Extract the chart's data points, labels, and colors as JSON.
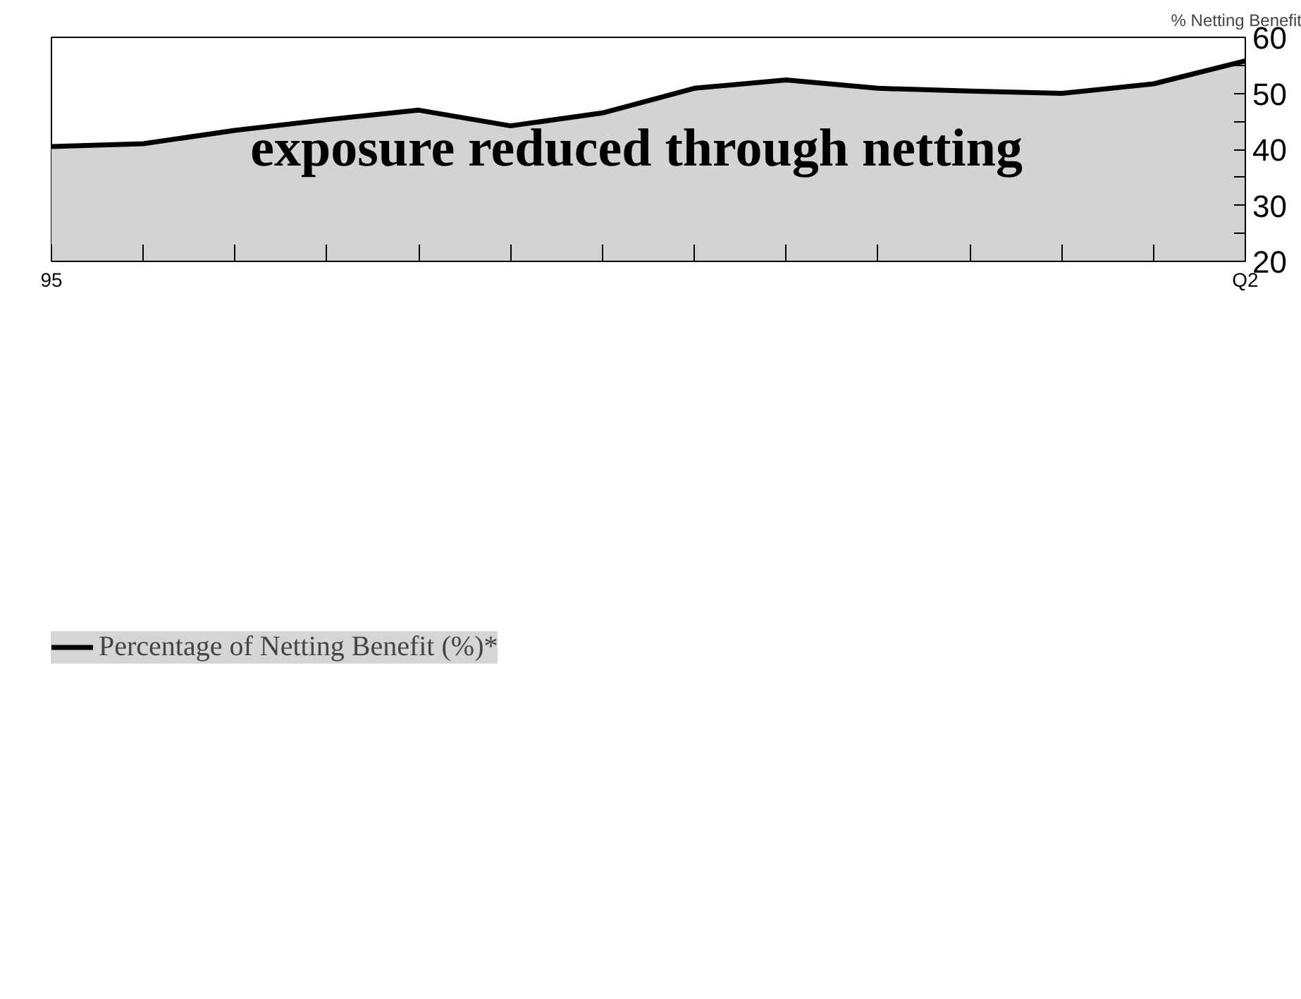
{
  "chart_data": {
    "type": "area",
    "ylabel": "% Netting Benefit",
    "categories": [
      "95",
      null,
      null,
      null,
      null,
      null,
      null,
      null,
      null,
      null,
      null,
      null,
      null,
      "Q2"
    ],
    "series": [
      {
        "name": "Percentage of Netting Benefit (%)*",
        "color": "#000000",
        "values": [
          40.5,
          41.0,
          43.4,
          45.3,
          47.0,
          44.2,
          46.5,
          50.9,
          52.4,
          50.9,
          50.4,
          50.0,
          51.7,
          55.8
        ]
      }
    ],
    "ylim": [
      20,
      60
    ],
    "yticks": [
      20,
      {
        "value": 25,
        "label": null
      },
      30,
      {
        "value": 35,
        "label": null
      },
      40,
      {
        "value": 45,
        "label": null
      },
      50,
      {
        "value": 55,
        "label": null
      },
      60
    ],
    "annotations": [
      "exposure reduced through netting"
    ],
    "legend": "bottom",
    "grid": false
  }
}
